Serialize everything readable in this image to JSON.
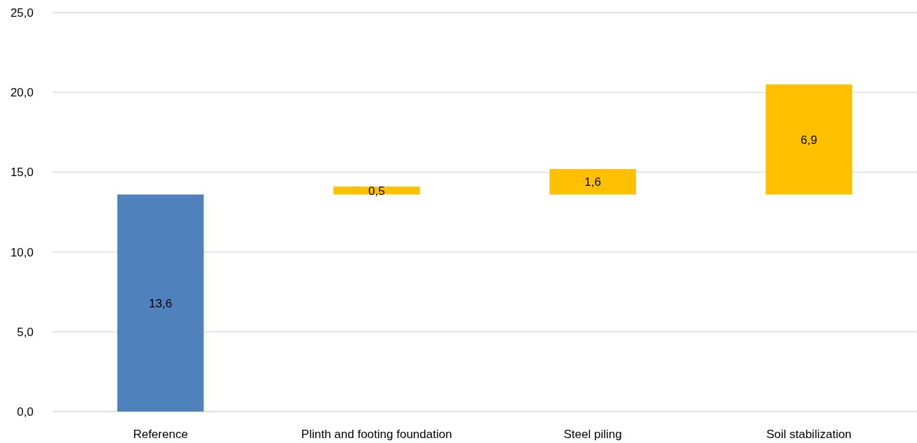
{
  "chart_data": {
    "type": "bar",
    "categories": [
      "Reference",
      "Plinth and footing foundation",
      "Steel piling",
      "Soil stabilization"
    ],
    "values": [
      13.6,
      0.5,
      1.6,
      6.9
    ],
    "base": [
      0,
      13.6,
      13.6,
      13.6
    ],
    "colors": [
      "#4f81bd",
      "#ffc000",
      "#ffc000",
      "#ffc000"
    ],
    "value_labels": [
      "13,6",
      "0,5",
      "1,6",
      "6,9"
    ],
    "ylim": [
      0,
      25
    ],
    "yticks": [
      {
        "value": 0,
        "label": "0,0"
      },
      {
        "value": 5,
        "label": "5,0"
      },
      {
        "value": 10,
        "label": "10,0"
      },
      {
        "value": 15,
        "label": "15,0"
      },
      {
        "value": 20,
        "label": "20,0"
      },
      {
        "value": 25,
        "label": "25,0"
      }
    ],
    "grid": "y"
  }
}
